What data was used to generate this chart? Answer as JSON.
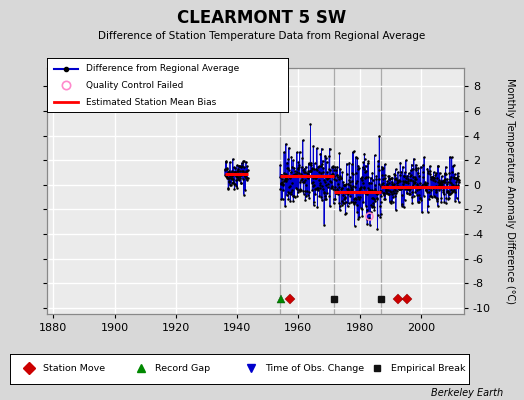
{
  "title": "CLEARMONT 5 SW",
  "subtitle": "Difference of Station Temperature Data from Regional Average",
  "ylabel_right": "Monthly Temperature Anomaly Difference (°C)",
  "credit": "Berkeley Earth",
  "xlim": [
    1878,
    2014
  ],
  "ylim": [
    -10.5,
    9.5
  ],
  "yticks": [
    -10,
    -8,
    -6,
    -4,
    -2,
    0,
    2,
    4,
    6,
    8
  ],
  "xticks": [
    1880,
    1900,
    1920,
    1940,
    1960,
    1980,
    2000
  ],
  "bg_color": "#d8d8d8",
  "plot_bg_color": "#ebebeb",
  "grid_color": "#ffffff",
  "data_color": "#0000cc",
  "bias_color": "#ff0000",
  "marker_color": "#000000",
  "seed": 42,
  "station_moves": [
    1957.3,
    1992.5,
    1995.5
  ],
  "record_gaps": [
    1954.2
  ],
  "time_obs_changes": [],
  "empirical_breaks": [
    1971.5,
    1987.0
  ],
  "segments": [
    {
      "start": 1936.0,
      "end": 1943.5,
      "bias": 0.85,
      "mean": 0.9,
      "std": 0.65
    },
    {
      "start": 1954.0,
      "end": 1971.5,
      "bias": 0.75,
      "mean": 0.5,
      "std": 1.15
    },
    {
      "start": 1971.5,
      "end": 1987.0,
      "bias": -0.55,
      "mean": -0.35,
      "std": 1.4
    },
    {
      "start": 1987.0,
      "end": 2012.5,
      "bias": -0.15,
      "mean": 0.05,
      "std": 0.85
    }
  ],
  "vlines": [
    1954.0,
    1971.5,
    1987.0
  ],
  "qc_point": [
    1983.2,
    -2.5
  ]
}
